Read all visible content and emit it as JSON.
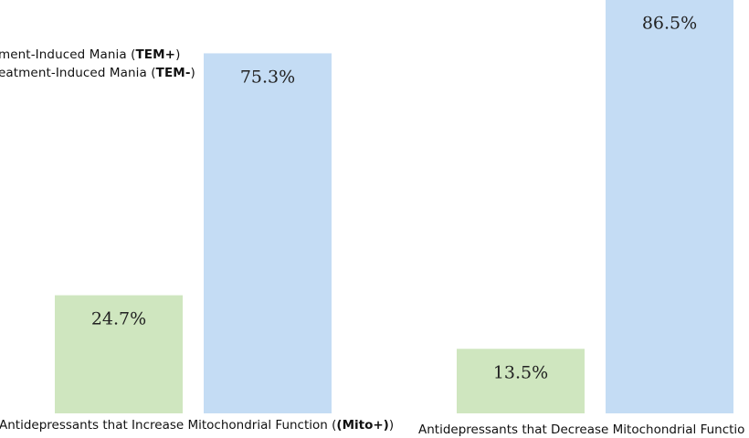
{
  "chart_data": {
    "type": "bar",
    "categories": [
      "Antidepressants that Increase Mitochondrial Function",
      "Antidepressants that Decrease Mitochondrial Functio"
    ],
    "category_suffixes": [
      "(Mito+)",
      ""
    ],
    "series": [
      {
        "name": "ment-Induced Mania",
        "code": "TEM+",
        "values": [
          24.7,
          13.5
        ],
        "labels": [
          "24.7%",
          "13.5%"
        ],
        "color": "#cfe6bf"
      },
      {
        "name": "eatment-Induced Mania",
        "code": "TEM-",
        "values": [
          75.3,
          86.5
        ],
        "labels": [
          "75.3%",
          "86.5%"
        ],
        "color": "#c4dcf4"
      }
    ],
    "ylim": [
      0,
      100
    ],
    "grid": false,
    "legend_position": "top-left",
    "title": "",
    "xlabel": "",
    "ylabel": ""
  }
}
